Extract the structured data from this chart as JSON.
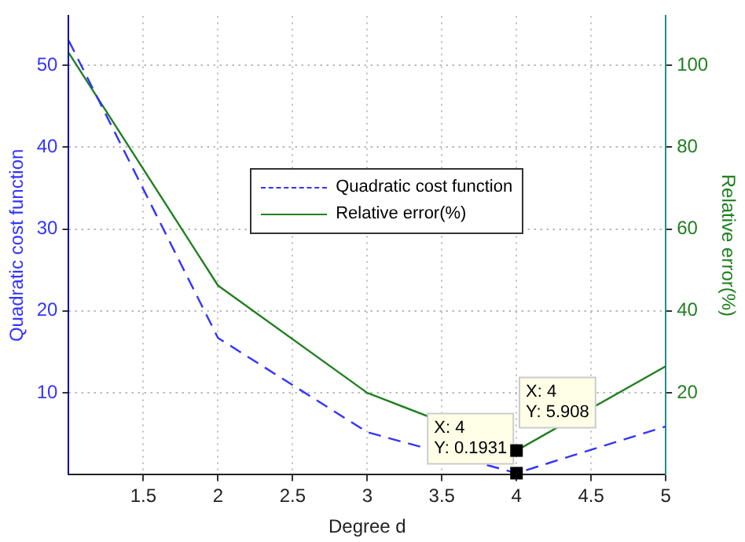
{
  "chart_data": {
    "type": "line",
    "xlabel": "Degree d",
    "ylabel": "Quadratic cost function",
    "y2label": "Relative error(%)",
    "x": [
      1,
      2,
      3,
      4,
      5
    ],
    "series": [
      {
        "name": "Quadratic cost function",
        "color": "#3333ff",
        "values": [
          53,
          16.7,
          5.2,
          0.1931,
          5.9
        ],
        "line_style": "dashed"
      },
      {
        "name": "Relative error(%)",
        "color": "#208020",
        "values": [
          103,
          46.2,
          20,
          5.908,
          26.5
        ],
        "axis": "y2",
        "line_style": "solid"
      }
    ],
    "xlim": [
      1,
      5
    ],
    "xticks": [
      1.5,
      2,
      2.5,
      3,
      3.5,
      4,
      4.5,
      5
    ],
    "ylim": [
      0,
      56
    ],
    "yticks": [
      10,
      20,
      30,
      40,
      50
    ],
    "y2lim": [
      0,
      112
    ],
    "y2ticks": [
      20,
      40,
      60,
      80,
      100
    ],
    "grid": true,
    "legend": "right",
    "marker": "none",
    "annotations": [
      {
        "text": "X: 4\nY: 0.1931",
        "x": 4,
        "y": 0.1931
      },
      "X: 4\nY: 5.908"
    ]
  }
}
